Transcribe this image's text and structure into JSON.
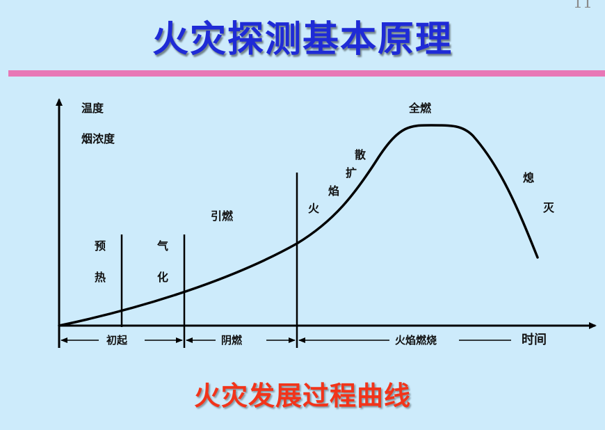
{
  "title": "火灾探测基本原理",
  "page_number": "11",
  "subtitle": "火灾发展过程曲线",
  "colors": {
    "background": "#cdebfb",
    "title": "#1f2bd6",
    "divider": "#e877b6",
    "subtitle": "#f2341a"
  },
  "axes": {
    "y_label_line1": "温度",
    "y_label_line2": "烟浓度",
    "x_label": "时间"
  },
  "curve_labels": {
    "preheat_1": "预",
    "preheat_2": "热",
    "gasify_1": "气",
    "gasify_2": "化",
    "ignite": "引燃",
    "spread_1": "火",
    "spread_2": "焰",
    "spread_3": "扩",
    "spread_4": "散",
    "full_burn": "全燃",
    "extinguish_1": "熄",
    "extinguish_2": "灭"
  },
  "phases": {
    "initial": "初起",
    "smoldering": "阴燃",
    "flame_burning": "火焰燃烧"
  }
}
